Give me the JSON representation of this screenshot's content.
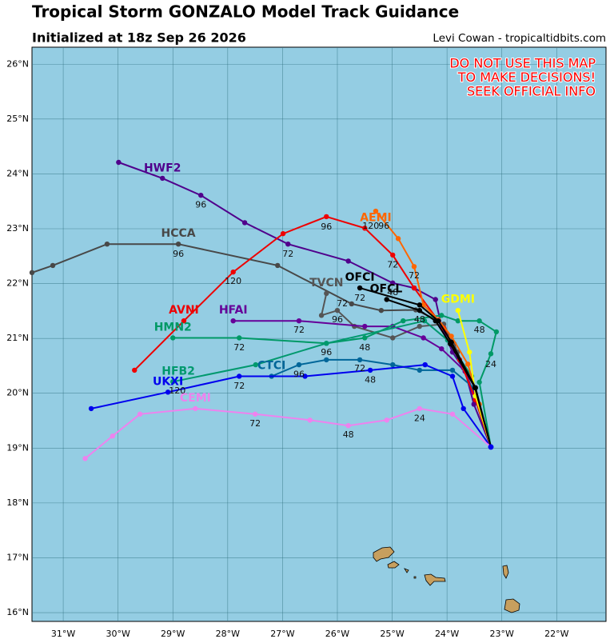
{
  "map": {
    "title": "Tropical Storm GONZALO Model Track Guidance",
    "subtitle": "Initialized at 18z Sep 26 2026",
    "credit": "Levi Cowan - tropicaltidbits.com",
    "warning": [
      "DO NOT USE THIS MAP",
      "TO MAKE DECISIONS!",
      "SEEK OFFICIAL INFO"
    ],
    "lonlim": [
      -31.57,
      -21.1
    ],
    "latlim": [
      15.84,
      26.31
    ],
    "lon_ticks": [
      {
        "value": -31,
        "label": "31°W"
      },
      {
        "value": -30,
        "label": "30°W"
      },
      {
        "value": -29,
        "label": "29°W"
      },
      {
        "value": -28,
        "label": "28°W"
      },
      {
        "value": -27,
        "label": "27°W"
      },
      {
        "value": -26,
        "label": "26°W"
      },
      {
        "value": -25,
        "label": "25°W"
      },
      {
        "value": -24,
        "label": "24°W"
      },
      {
        "value": -23,
        "label": "23°W"
      },
      {
        "value": -22,
        "label": "22°W"
      }
    ],
    "lat_ticks": [
      {
        "value": 16,
        "label": "16°N"
      },
      {
        "value": 17,
        "label": "17°N"
      },
      {
        "value": 18,
        "label": "18°N"
      },
      {
        "value": 19,
        "label": "19°N"
      },
      {
        "value": 20,
        "label": "20°N"
      },
      {
        "value": 21,
        "label": "21°N"
      },
      {
        "value": 22,
        "label": "22°N"
      },
      {
        "value": 23,
        "label": "23°N"
      },
      {
        "value": 24,
        "label": "24°N"
      },
      {
        "value": 25,
        "label": "25°N"
      },
      {
        "value": 26,
        "label": "26°N"
      }
    ],
    "tracks": [
      {
        "name": "HCCA",
        "color": "#484848",
        "label_at": [
          -28.9,
          22.91
        ],
        "points": [
          [
            -23.2,
            19.02
          ],
          [
            -23.48,
            19.88
          ],
          [
            -23.7,
            20.46
          ],
          [
            -23.87,
            20.9
          ],
          [
            -24.15,
            21.32
          ],
          [
            -24.57,
            21.52
          ],
          [
            -25.2,
            21.51
          ],
          [
            -25.74,
            21.63
          ],
          [
            -27.09,
            22.33
          ],
          [
            -28.9,
            22.72
          ],
          [
            -30.2,
            22.72
          ],
          [
            -31.19,
            22.33
          ],
          [
            -31.57,
            22.2
          ]
        ],
        "hours": [
          {
            "label": "96",
            "at": [
              -28.9,
              22.53
            ]
          }
        ]
      },
      {
        "name": "TVCN",
        "color": "#555555",
        "label_at": [
          -26.2,
          22.01
        ],
        "points": [
          [
            -23.2,
            19.02
          ],
          [
            -23.52,
            20.02
          ],
          [
            -23.81,
            20.75
          ],
          [
            -24.06,
            21.26
          ],
          [
            -24.5,
            21.22
          ],
          [
            -24.99,
            21.01
          ],
          [
            -25.69,
            21.22
          ],
          [
            -26.0,
            21.51
          ],
          [
            -26.29,
            21.42
          ],
          [
            -26.2,
            21.82
          ]
        ],
        "hours": [
          {
            "label": "72",
            "at": [
              -25.91,
              21.63
            ]
          },
          {
            "label": "96",
            "at": [
              -26.0,
              21.34
            ]
          }
        ]
      },
      {
        "name": "HWF2",
        "color": "#50008c",
        "label_at": [
          -29.19,
          24.1
        ],
        "points": [
          [
            -23.2,
            19.02
          ],
          [
            -23.51,
            19.8
          ],
          [
            -23.67,
            20.4
          ],
          [
            -23.9,
            20.75
          ],
          [
            -24.1,
            21.22
          ],
          [
            -24.21,
            21.71
          ],
          [
            -24.6,
            21.92
          ],
          [
            -24.99,
            22.01
          ],
          [
            -25.8,
            22.41
          ],
          [
            -26.9,
            22.72
          ],
          [
            -27.69,
            23.11
          ],
          [
            -28.49,
            23.61
          ],
          [
            -29.19,
            23.92
          ],
          [
            -29.99,
            24.21
          ]
        ],
        "hours": [
          {
            "label": "96",
            "at": [
              -28.49,
              23.43
            ]
          },
          {
            "label": "72",
            "at": [
              -26.9,
              22.53
            ]
          },
          {
            "label": "48",
            "at": [
              -24.99,
              21.83
            ]
          }
        ]
      },
      {
        "name": "HFAI",
        "color": "#660099",
        "label_at": [
          -27.9,
          21.51
        ],
        "points": [
          [
            -23.2,
            19.02
          ],
          [
            -23.52,
            20.02
          ],
          [
            -23.67,
            20.4
          ],
          [
            -24.1,
            20.81
          ],
          [
            -24.43,
            21.01
          ],
          [
            -24.99,
            21.22
          ],
          [
            -25.5,
            21.22
          ],
          [
            -26.7,
            21.32
          ],
          [
            -27.9,
            21.32
          ]
        ],
        "hours": [
          {
            "label": "72",
            "at": [
              -26.7,
              21.15
            ]
          }
        ]
      },
      {
        "name": "HMN2",
        "color": "#009966",
        "label_at": [
          -29.0,
          21.2
        ],
        "points": [
          [
            -23.2,
            19.02
          ],
          [
            -23.41,
            20.2
          ],
          [
            -23.2,
            20.72
          ],
          [
            -23.1,
            21.12
          ],
          [
            -23.41,
            21.32
          ],
          [
            -23.8,
            21.32
          ],
          [
            -24.1,
            21.42
          ],
          [
            -24.8,
            21.32
          ],
          [
            -25.5,
            21.01
          ],
          [
            -26.2,
            20.91
          ],
          [
            -27.79,
            21.01
          ],
          [
            -29.0,
            21.01
          ]
        ],
        "hours": [
          {
            "label": "24",
            "at": [
              -23.2,
              20.52
            ]
          },
          {
            "label": "48",
            "at": [
              -23.41,
              21.15
            ]
          },
          {
            "label": "72",
            "at": [
              -27.79,
              20.83
            ]
          }
        ]
      },
      {
        "name": "HFB2",
        "color": "#00996e",
        "label_at": [
          -28.9,
          20.4
        ],
        "points": [
          [
            -23.2,
            19.02
          ],
          [
            -23.55,
            20.31
          ],
          [
            -23.99,
            20.97
          ],
          [
            -24.41,
            21.32
          ],
          [
            -26.2,
            20.91
          ],
          [
            -27.49,
            20.52
          ],
          [
            -29.0,
            20.21
          ]
        ],
        "hours": [
          {
            "label": "96",
            "at": [
              -26.2,
              20.74
            ]
          },
          {
            "label": "48",
            "at": [
              -25.5,
              20.83
            ]
          }
        ]
      },
      {
        "name": "CTCI",
        "color": "#006699",
        "label_at": [
          -27.2,
          20.5
        ],
        "points": [
          [
            -23.2,
            19.02
          ],
          [
            -23.51,
            20.1
          ],
          [
            -23.9,
            20.42
          ],
          [
            -24.5,
            20.42
          ],
          [
            -24.99,
            20.52
          ],
          [
            -25.59,
            20.61
          ],
          [
            -26.2,
            20.61
          ],
          [
            -26.7,
            20.52
          ],
          [
            -27.2,
            20.31
          ]
        ],
        "hours": [
          {
            "label": "72",
            "at": [
              -25.59,
              20.45
            ]
          },
          {
            "label": "96",
            "at": [
              -26.7,
              20.34
            ]
          }
        ]
      },
      {
        "name": "UKXI",
        "color": "#0000ee",
        "label_at": [
          -29.09,
          20.21
        ],
        "points": [
          [
            -23.2,
            19.02
          ],
          [
            -23.7,
            19.72
          ],
          [
            -23.9,
            20.31
          ],
          [
            -24.4,
            20.52
          ],
          [
            -25.4,
            20.42
          ],
          [
            -26.59,
            20.31
          ],
          [
            -27.79,
            20.31
          ],
          [
            -29.09,
            20.02
          ],
          [
            -30.49,
            19.72
          ]
        ],
        "hours": [
          {
            "label": "120",
            "at": [
              -28.92,
              20.04
            ]
          },
          {
            "label": "72",
            "at": [
              -27.79,
              20.13
            ]
          },
          {
            "label": "48",
            "at": [
              -25.4,
              20.24
            ]
          }
        ]
      },
      {
        "name": "CEMI",
        "color": "#ee82ee",
        "label_at": [
          -28.59,
          19.91
        ],
        "points": [
          [
            -23.2,
            19.02
          ],
          [
            -23.9,
            19.62
          ],
          [
            -24.5,
            19.72
          ],
          [
            -25.1,
            19.51
          ],
          [
            -25.8,
            19.41
          ],
          [
            -26.5,
            19.51
          ],
          [
            -27.5,
            19.62
          ],
          [
            -28.59,
            19.72
          ],
          [
            -29.6,
            19.62
          ],
          [
            -30.1,
            19.22
          ],
          [
            -30.6,
            18.81
          ]
        ],
        "hours": [
          {
            "label": "72",
            "at": [
              -27.5,
              19.44
            ]
          },
          {
            "label": "48",
            "at": [
              -25.8,
              19.24
            ]
          },
          {
            "label": "24",
            "at": [
              -24.5,
              19.54
            ]
          }
        ]
      },
      {
        "name": "AVNI",
        "color": "#ee0000",
        "label_at": [
          -28.8,
          21.51
        ],
        "points": [
          [
            -23.2,
            19.02
          ],
          [
            -23.48,
            19.88
          ],
          [
            -23.77,
            20.61
          ],
          [
            -24.06,
            21.19
          ],
          [
            -24.6,
            21.92
          ],
          [
            -24.99,
            22.52
          ],
          [
            -25.5,
            23.01
          ],
          [
            -26.2,
            23.22
          ],
          [
            -26.99,
            22.91
          ],
          [
            -27.9,
            22.21
          ],
          [
            -28.8,
            21.32
          ],
          [
            -29.7,
            20.42
          ]
        ],
        "hours": [
          {
            "label": "96",
            "at": [
              -26.2,
              23.03
            ]
          },
          {
            "label": "120",
            "at": [
              -27.9,
              22.04
            ]
          },
          {
            "label": "72",
            "at": [
              -24.99,
              22.34
            ]
          }
        ]
      },
      {
        "name": "AEMI",
        "color": "#ff6600",
        "label_at": [
          -25.3,
          23.2
        ],
        "points": [
          [
            -23.2,
            19.02
          ],
          [
            -23.41,
            19.8
          ],
          [
            -23.62,
            20.53
          ],
          [
            -23.92,
            21.04
          ],
          [
            -24.16,
            21.34
          ],
          [
            -24.43,
            21.61
          ],
          [
            -24.6,
            22.31
          ],
          [
            -24.89,
            22.82
          ],
          [
            -25.3,
            23.32
          ]
        ],
        "hours": [
          {
            "label": "72",
            "at": [
              -24.6,
              22.14
            ]
          },
          {
            "label": "120",
            "at": [
              -25.39,
              23.04
            ]
          },
          {
            "label": "96",
            "at": [
              -25.15,
              23.04
            ]
          }
        ]
      },
      {
        "name": "GDMI",
        "color": "#ffff00",
        "label_at": [
          -23.8,
          21.71
        ],
        "points": [
          [
            -23.2,
            19.02
          ],
          [
            -23.48,
            19.95
          ],
          [
            -23.59,
            20.75
          ],
          [
            -23.8,
            21.51
          ]
        ],
        "hours": []
      },
      {
        "name": "OFCI",
        "color": "#000000",
        "label_at": [
          -25.59,
          22.11
        ],
        "points": [
          [
            -23.2,
            19.02
          ],
          [
            -23.48,
            20.1
          ],
          [
            -23.92,
            20.93
          ],
          [
            -24.16,
            21.32
          ],
          [
            -24.5,
            21.61
          ],
          [
            -25.59,
            21.92
          ]
        ],
        "hours": [
          {
            "label": "72",
            "at": [
              -25.59,
              21.73
            ]
          }
        ]
      },
      {
        "name": "OFCL",
        "color": "#000000",
        "label_at": [
          -25.11,
          21.9
        ],
        "points": [
          [
            -23.2,
            19.02
          ],
          [
            -23.49,
            20.1
          ],
          [
            -23.94,
            20.9
          ],
          [
            -24.21,
            21.32
          ],
          [
            -24.5,
            21.51
          ],
          [
            -25.1,
            21.71
          ]
        ],
        "hours": [
          {
            "label": "48",
            "at": [
              -24.5,
              21.34
            ]
          }
        ]
      }
    ]
  }
}
